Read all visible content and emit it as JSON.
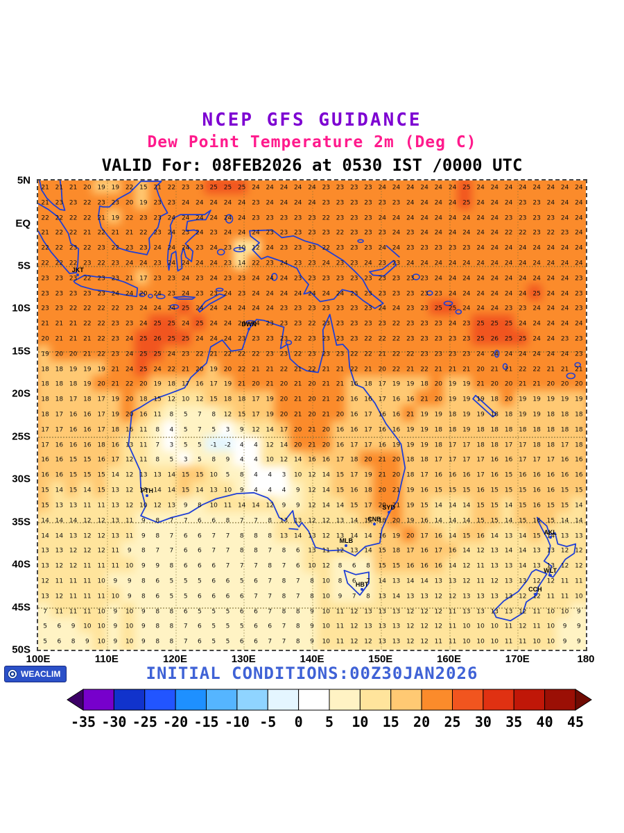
{
  "header": {
    "title": "NCEP GFS GUIDANCE",
    "subtitle": "Dew Point Temperature 2m (Deg C)",
    "valid_line": "VALID For: 08FEB2026 at 0530 IST /0000 UTC",
    "title_color": "#7d00d2",
    "subtitle_color": "#ff1a8c"
  },
  "footer": {
    "logo_text": "WEACLIM",
    "initial_conditions": "INITIAL CONDITIONS:00Z30JAN2026",
    "initial_conditions_color": "#3f62d6"
  },
  "chart_data": {
    "type": "heatmap",
    "title": "NCEP GFS GUIDANCE - Dew Point Temperature 2m (Deg C)",
    "valid": "08FEB2026 at 0530 IST /0000 UTC",
    "init": "00Z30JAN2026",
    "units": "Deg C",
    "lon_range": [
      100,
      180
    ],
    "lat_range": [
      -50,
      5
    ],
    "grid_on": true,
    "lat_ticks": [
      {
        "label": "5N",
        "lat": 5
      },
      {
        "label": "EQ",
        "lat": 0
      },
      {
        "label": "5S",
        "lat": -5
      },
      {
        "label": "10S",
        "lat": -10
      },
      {
        "label": "15S",
        "lat": -15
      },
      {
        "label": "20S",
        "lat": -20
      },
      {
        "label": "25S",
        "lat": -25
      },
      {
        "label": "30S",
        "lat": -30
      },
      {
        "label": "35S",
        "lat": -35
      },
      {
        "label": "40S",
        "lat": -40
      },
      {
        "label": "45S",
        "lat": -45
      },
      {
        "label": "50S",
        "lat": -50
      }
    ],
    "lon_ticks": [
      {
        "label": "100E",
        "lon": 100
      },
      {
        "label": "110E",
        "lon": 110
      },
      {
        "label": "120E",
        "lon": 120
      },
      {
        "label": "130E",
        "lon": 130
      },
      {
        "label": "140E",
        "lon": 140
      },
      {
        "label": "150E",
        "lon": 150
      },
      {
        "label": "160E",
        "lon": 160
      },
      {
        "label": "170E",
        "lon": 170
      },
      {
        "label": "180",
        "lon": 180
      }
    ],
    "dotted_lat_lines": [
      -5,
      -15,
      -25,
      -35,
      -45
    ],
    "dotted_lon_lines": [
      110,
      120,
      130,
      140,
      150,
      160,
      170
    ],
    "colorbar": {
      "levels": [
        -35,
        -30,
        -25,
        -20,
        -15,
        -10,
        -5,
        0,
        5,
        10,
        15,
        20,
        25,
        30,
        35,
        40,
        45
      ],
      "tick_labels": [
        "-35",
        "-30",
        "-25",
        "-20",
        "-15",
        "-10",
        "-5",
        "0",
        "5",
        "10",
        "15",
        "20",
        "25",
        "30",
        "35",
        "40",
        "45"
      ],
      "segment_colors": [
        "#7700cc",
        "#1133cc",
        "#2255ff",
        "#1e90ff",
        "#55b5ff",
        "#8fd4ff",
        "#e4f6ff",
        "#ffffff",
        "#fff3c4",
        "#ffe49c",
        "#ffc973",
        "#fb8b2b",
        "#f1551f",
        "#e03112",
        "#c01708",
        "#9b0f05"
      ],
      "arrow_left_color": "#3c0066",
      "arrow_right_color": "#700b03"
    },
    "stations": [
      {
        "code": "JKT",
        "lon": 105.8,
        "lat": -6.1
      },
      {
        "code": "DWN",
        "lon": 130.8,
        "lat": -12.4
      },
      {
        "code": "PTH",
        "lon": 115.9,
        "lat": -31.9
      },
      {
        "code": "SYD",
        "lon": 151.2,
        "lat": -33.9
      },
      {
        "code": "CNB",
        "lon": 149.1,
        "lat": -35.3
      },
      {
        "code": "MLB",
        "lon": 145.0,
        "lat": -37.8
      },
      {
        "code": "HBT",
        "lon": 147.3,
        "lat": -42.9
      },
      {
        "code": "AKL",
        "lon": 174.8,
        "lat": -36.8
      },
      {
        "code": "WLT",
        "lon": 174.8,
        "lat": -41.3
      },
      {
        "code": "CCH",
        "lon": 172.6,
        "lat": -43.5
      }
    ],
    "grid": {
      "cols": 39,
      "rows": 31,
      "values_rows": [
        "21 21 21 20 19 19 22 15 21 22 23 23 25 25 25 24 24 24 24 24 23 23 23 23 24 24 24 24 24 24 25 24 24 24 24 24 24 24 24",
        "21 23 23 22 23 23 20 19 23 23 24 24 24 24 24 23 24 24 24 24 23 23 23 23 23 23 24 24 24 24 25 24 24 24 23 23 24 24 24",
        "22 22 22 22 21 19 22 23 23 24 24 24 24 24 24 23 23 23 23 23 22 23 23 23 24 24 24 24 24 24 24 24 24 23 23 23 23 24 24",
        "21 22 22 21 22 21 21 22 23 24 23 24 23 24 24 24 23 23 23 23 23 22 23 23 23 24 23 24 24 24 24 24 24 22 22 23 22 23 24",
        "22 22 23 22 23 22 23 23 24 24 24 23 24 23 10 12 24 23 23 23 22 23 23 23 24 24 23 23 23 23 23 24 24 24 24 24 24 24 24",
        "22 22 22 23 22 23 24 24 23 24 24 24 24 23 14 22 23 24 23 23 24 23 23 24 23 23 24 24 24 24 24 24 24 24 24 24 24 24 24",
        "23 23 23 22 23 23 21 17 23 23 24 23 24 23 23 24 24 24 23 23 23 23 23 23 23 23 23 23 24 24 24 24 24 24 24 24 24 24 23",
        "23 23 23 23 23 24 24 20 24 23 24 23 23 24 23 24 24 24 24 24 24 24 23 23 23 23 23 23 23 24 24 24 24 24 24 25 24 24 23",
        "23 23 22 22 22 22 23 24 24 24 25 24 24 24 24 24 24 23 23 23 23 23 23 23 24 24 23 23 25 25 24 24 24 23 23 24 24 24 23",
        "21 21 21 22 22 23 23 24 25 25 24 25 24 24 24 24 23 23 23 22 23 23 23 23 23 22 23 23 23 24 23 25 25 25 24 24 24 24 24",
        "20 21 21 21 22 23 24 25 26 25 25 24 24 24 23 23 23 23 22 23 23 23 23 22 22 22 23 23 23 23 23 25 26 25 25 24 24 23 23",
        "19 20 20 21 22 23 24 25 25 24 23 22 21 22 22 22 23 23 22 23 23 23 22 22 21 22 22 23 23 23 23 24 24 24 24 24 24 24 23",
        "18 18 19 19 19 21 24 25 24 22 21 20 19 20 22 21 21 22 21 22 21 21 22 21 20 22 21 22 21 21 21 20 21 21 22 22 21 21 21",
        "18 18 18 19 20 21 22 20 19 18 17 16 17 19 21 20 21 20 21 20 21 21 16 18 17 19 19 18 20 19 19 21 20 20 21 21 20 20 20",
        "18 18 17 18 17 19 20 18 15 12 10 12 15 18 18 17 19 20 21 20 21 20 16 16 17 16 16 21 20 19 19 19 18 20 19 19 19 19 19",
        "18 17 16 16 17 19 20 16 11 8 5 7 8 12 15 17 19 20 21 20 21 20 16 17 16 16 21 19 19 18 19 19 18 18 19 19 18 18 18",
        "17 17 16 16 17 18 16 11 8 4 5 7 5 3 9 12 14 17 20 21 20 16 16 17 16 16 19 19 18 18 19 18 18 18 18 18 18 18 18",
        "17 16 16 16 18 16 13 11 7 3 5 5 -1 -2 4 4 12 14 20 21 20 16 17 17 16 19 19 19 18 17 17 18 18 17 17 18 18 17 18",
        "16 16 15 15 16 17 12 11 8 5 3 5 8 9 4 4 10 12 14 16 16 17 18 20 21 20 18 18 17 17 17 17 16 16 17 17 17 16 16",
        "16 16 15 15 15 14 12 13 13 14 15 15 10 5 8 4 4 3 10 12 14 15 17 19 21 20 18 17 16 16 16 17 16 15 16 16 16 16 16",
        "15 14 15 14 15 13 12 13 14 14 15 14 13 10 9 4 4 4 9 12 14 15 16 18 20 21 19 16 15 15 15 16 15 15 15 16 16 15 15",
        "15 13 13 11 11 13 12 10 12 13 9 8 10 11 14 14 12 9 9 12 14 14 15 17 20 21 19 15 14 14 14 15 15 14 15 16 15 15 14",
        "14 14 14 12 12 13 11 9 8 7 7 6 6 8 7 7 8 13 13 12 12 13 14 15 18 20 19 16 14 14 14 15 15 14 15 16 15 14 14",
        "14 14 13 12 12 13 11 9 8 7 6 6 7 7 8 8 8 13 14 13 12 13 14 14 16 19 20 17 16 14 15 16 14 13 14 15 14 13 13",
        "13 13 12 12 12 11 9 8 7 7 6 6 7 7 8 8 7 8 6 13 11 12 13 14 15 18 17 16 17 16 14 12 13 14 14 13 13 12 12",
        "13 12 12 11 11 11 10 9 9 8 6 6 6 7 7 7 8 7 6 10 12 8 6 8 15 15 16 16 16 14 12 11 13 13 14 13 13 12 12",
        "12 11 11 11 10 9 9 8 6 5 5 5 6 6 5 6 7 8 7 8 10 8 6 7 14 13 14 14 13 13 12 11 12 13 13 12 12 11 11",
        "13 12 11 11 11 10 9 8 6 5 5 6 6 6 6 7 7 8 7 8 10 9 7 8 13 14 13 13 12 12 13 13 13 13 12 12 11 11 10",
        "7 11 11 11 10 9 10 9 8 8 6 5 5 5 6 6 7 8 8 9 10 11 12 13 13 13 12 12 12 11 13 13 13 13 12 11 10 10 9",
        "5 6 9 10 10 9 10 9 8 8 7 6 5 5 5 6 6 7 8 9 10 11 12 13 13 13 12 12 12 11 10 10 10 11 12 11 10 9 9",
        "5 6 8 9 10 9 10 9 8 8 7 6 5 5 6 6 7 7 8 9 10 11 12 12 13 13 12 12 11 11 10 10 10 11 11 10 10 9 9"
      ]
    }
  }
}
